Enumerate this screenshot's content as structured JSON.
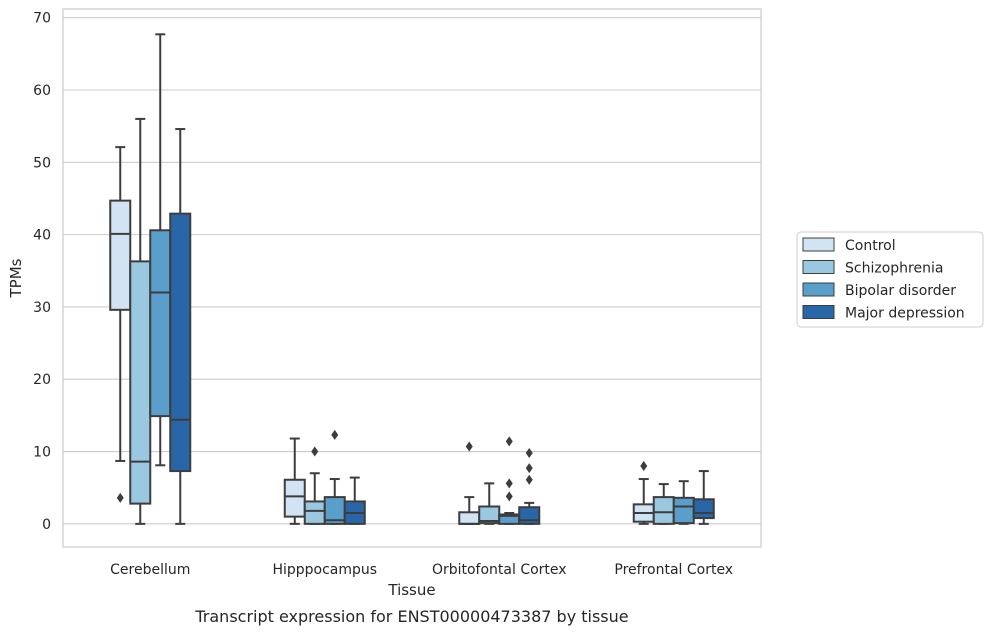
{
  "chart_data": {
    "type": "boxplot",
    "title": "",
    "caption": "Transcript expression for ENST00000473387 by tissue",
    "xlabel": "Tissue",
    "ylabel": "TPMs",
    "ylim": [
      -3.2,
      71.2
    ],
    "yticks": [
      0,
      10,
      20,
      30,
      40,
      50,
      60,
      70
    ],
    "grid": "horizontal",
    "legend_position": "right",
    "categories": [
      "Cerebellum",
      "Hipppocampus",
      "Orbitofontal Cortex",
      "Prefrontal Cortex"
    ],
    "series": [
      {
        "name": "Control",
        "color": "#d2e3f3",
        "boxes": [
          {
            "whisker_low": 8.7,
            "q1": 29.6,
            "median": 40.1,
            "q3": 44.7,
            "whisker_high": 52.1,
            "outliers": [
              3.6
            ]
          },
          {
            "whisker_low": 0.0,
            "q1": 1.0,
            "median": 3.8,
            "q3": 6.1,
            "whisker_high": 11.8,
            "outliers": []
          },
          {
            "whisker_low": 0.0,
            "q1": 0.0,
            "median": 0.0,
            "q3": 1.6,
            "whisker_high": 3.7,
            "outliers": [
              10.7
            ]
          },
          {
            "whisker_low": 0.0,
            "q1": 0.3,
            "median": 1.5,
            "q3": 2.7,
            "whisker_high": 6.2,
            "outliers": [
              8.0
            ]
          }
        ]
      },
      {
        "name": "Schizophrenia",
        "color": "#9ac8e0",
        "boxes": [
          {
            "whisker_low": 0.0,
            "q1": 2.8,
            "median": 8.6,
            "q3": 36.3,
            "whisker_high": 56.0,
            "outliers": []
          },
          {
            "whisker_low": 0.0,
            "q1": 0.0,
            "median": 1.8,
            "q3": 3.1,
            "whisker_high": 7.0,
            "outliers": [
              10.0
            ]
          },
          {
            "whisker_low": 0.0,
            "q1": 0.1,
            "median": 0.4,
            "q3": 2.4,
            "whisker_high": 5.6,
            "outliers": []
          },
          {
            "whisker_low": 0.0,
            "q1": 0.0,
            "median": 1.6,
            "q3": 3.7,
            "whisker_high": 5.5,
            "outliers": []
          }
        ]
      },
      {
        "name": "Bipolar disorder",
        "color": "#5a9fcc",
        "boxes": [
          {
            "whisker_low": 8.1,
            "q1": 14.9,
            "median": 32.0,
            "q3": 40.6,
            "whisker_high": 67.7,
            "outliers": []
          },
          {
            "whisker_low": 0.0,
            "q1": 0.0,
            "median": 0.5,
            "q3": 3.7,
            "whisker_high": 6.2,
            "outliers": [
              12.3
            ]
          },
          {
            "whisker_low": 0.0,
            "q1": 0.0,
            "median": 1.1,
            "q3": 1.3,
            "whisker_high": 1.5,
            "outliers": [
              3.8,
              5.6,
              11.4
            ]
          },
          {
            "whisker_low": 0.0,
            "q1": 0.1,
            "median": 2.4,
            "q3": 3.6,
            "whisker_high": 5.9,
            "outliers": []
          }
        ]
      },
      {
        "name": "Major depression",
        "color": "#2866a8",
        "boxes": [
          {
            "whisker_low": 0.0,
            "q1": 7.3,
            "median": 14.4,
            "q3": 42.9,
            "whisker_high": 54.6,
            "outliers": []
          },
          {
            "whisker_low": 0.0,
            "q1": 0.0,
            "median": 1.5,
            "q3": 3.1,
            "whisker_high": 6.4,
            "outliers": []
          },
          {
            "whisker_low": 0.0,
            "q1": 0.0,
            "median": 0.5,
            "q3": 2.3,
            "whisker_high": 2.9,
            "outliers": [
              6.1,
              7.7,
              9.8
            ]
          },
          {
            "whisker_low": 0.0,
            "q1": 0.8,
            "median": 1.5,
            "q3": 3.4,
            "whisker_high": 7.3,
            "outliers": []
          }
        ]
      }
    ]
  }
}
